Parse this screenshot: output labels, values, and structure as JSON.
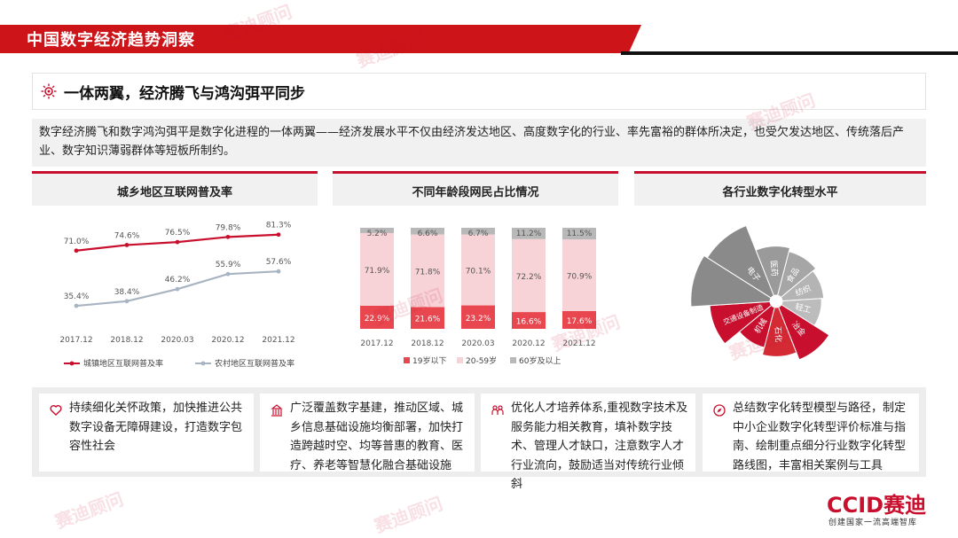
{
  "header": {
    "title": "中国数字经济趋势洞察"
  },
  "section": {
    "title": "一体两翼，经济腾飞与鸿沟弭平同步"
  },
  "intro": "数字经济腾飞和数字鸿沟弭平是数字化进程的一体两翼——经济发展水平不仅由经济发达地区、高度数字化的行业、率先富裕的群体所决定，也受欠发达地区、传统落后产业、数字知识薄弱群体等短板所制约。",
  "charts": {
    "c1_title": "城乡地区互联网普及率",
    "c2_title": "不同年龄段网民占比情况",
    "c3_title": "各行业数字化转型水平"
  },
  "chart_data": [
    {
      "type": "line",
      "title": "城乡地区互联网普及率",
      "categories": [
        "2017.12",
        "2018.12",
        "2020.03",
        "2020.12",
        "2021.12"
      ],
      "series": [
        {
          "name": "城镇地区互联网普及率",
          "values": [
            71.0,
            74.6,
            76.5,
            79.8,
            81.3
          ],
          "color": "#c8102e"
        },
        {
          "name": "农村地区互联网普及率",
          "values": [
            35.4,
            38.4,
            46.2,
            55.9,
            57.6
          ],
          "color": "#a9b4c2"
        }
      ],
      "ylim": [
        0,
        100
      ],
      "legend": "bottom"
    },
    {
      "type": "bar",
      "stacked": true,
      "title": "不同年龄段网民占比情况",
      "categories": [
        "2017.12",
        "2018.12",
        "2020.03",
        "2020.12",
        "2021.12"
      ],
      "series": [
        {
          "name": "19岁以下",
          "values": [
            22.9,
            21.6,
            23.2,
            16.6,
            17.6
          ],
          "color": "#e8474f"
        },
        {
          "name": "20-59岁",
          "values": [
            71.9,
            71.8,
            70.1,
            72.2,
            70.9
          ],
          "color": "#f7d3d7"
        },
        {
          "name": "60岁及以上",
          "values": [
            5.2,
            6.6,
            6.7,
            11.2,
            11.5
          ],
          "color": "#b8b8b8"
        }
      ],
      "ylim": [
        0,
        100
      ],
      "legend": "bottom"
    },
    {
      "type": "pie",
      "variant": "rose",
      "title": "各行业数字化转型水平",
      "categories": [
        "电子",
        "医药",
        "食品",
        "纺织",
        "轻工",
        "冶金",
        "石化",
        "机械",
        "交通设备制造",
        ""
      ],
      "values": [
        10,
        6.5,
        6,
        5.5,
        5.2,
        7.5,
        6.5,
        5.5,
        8,
        10.5
      ],
      "colors": [
        "#8a8a8a",
        "#9a9a9a",
        "#a6a6a6",
        "#b4b4b4",
        "#bcbcbc",
        "#c8102e",
        "#d32a34",
        "#c8102e",
        "#c8102e",
        "#8a8a8a"
      ]
    }
  ],
  "cards": [
    {
      "icon": "heart-icon",
      "text": "持续细化关怀政策，加快推进公共数字设备无障碍建设，打造数字包容性社会"
    },
    {
      "icon": "building-icon",
      "text": "广泛覆盖数字基建，推动区域、城乡信息基础设施均衡部署，加快打造跨越时空、均等普惠的教育、医疗、养老等智慧化融合基础设施"
    },
    {
      "icon": "people-icon",
      "text": "优化人才培养体系,重视数字技术及服务能力相关教育，填补数字技术、管理人才缺口，注意数字人才行业流向，鼓励适当对传统行业倾斜"
    },
    {
      "icon": "compass-icon",
      "text": "总结数字化转型模型与路径，制定中小企业数字化转型评价标准与指南、绘制重点细分行业数字化转型路线图，丰富相关案例与工具"
    }
  ],
  "logo": {
    "brand": "CCID赛迪",
    "slogan": "创建国家一流高端智库"
  },
  "watermark": "赛迪顾问"
}
